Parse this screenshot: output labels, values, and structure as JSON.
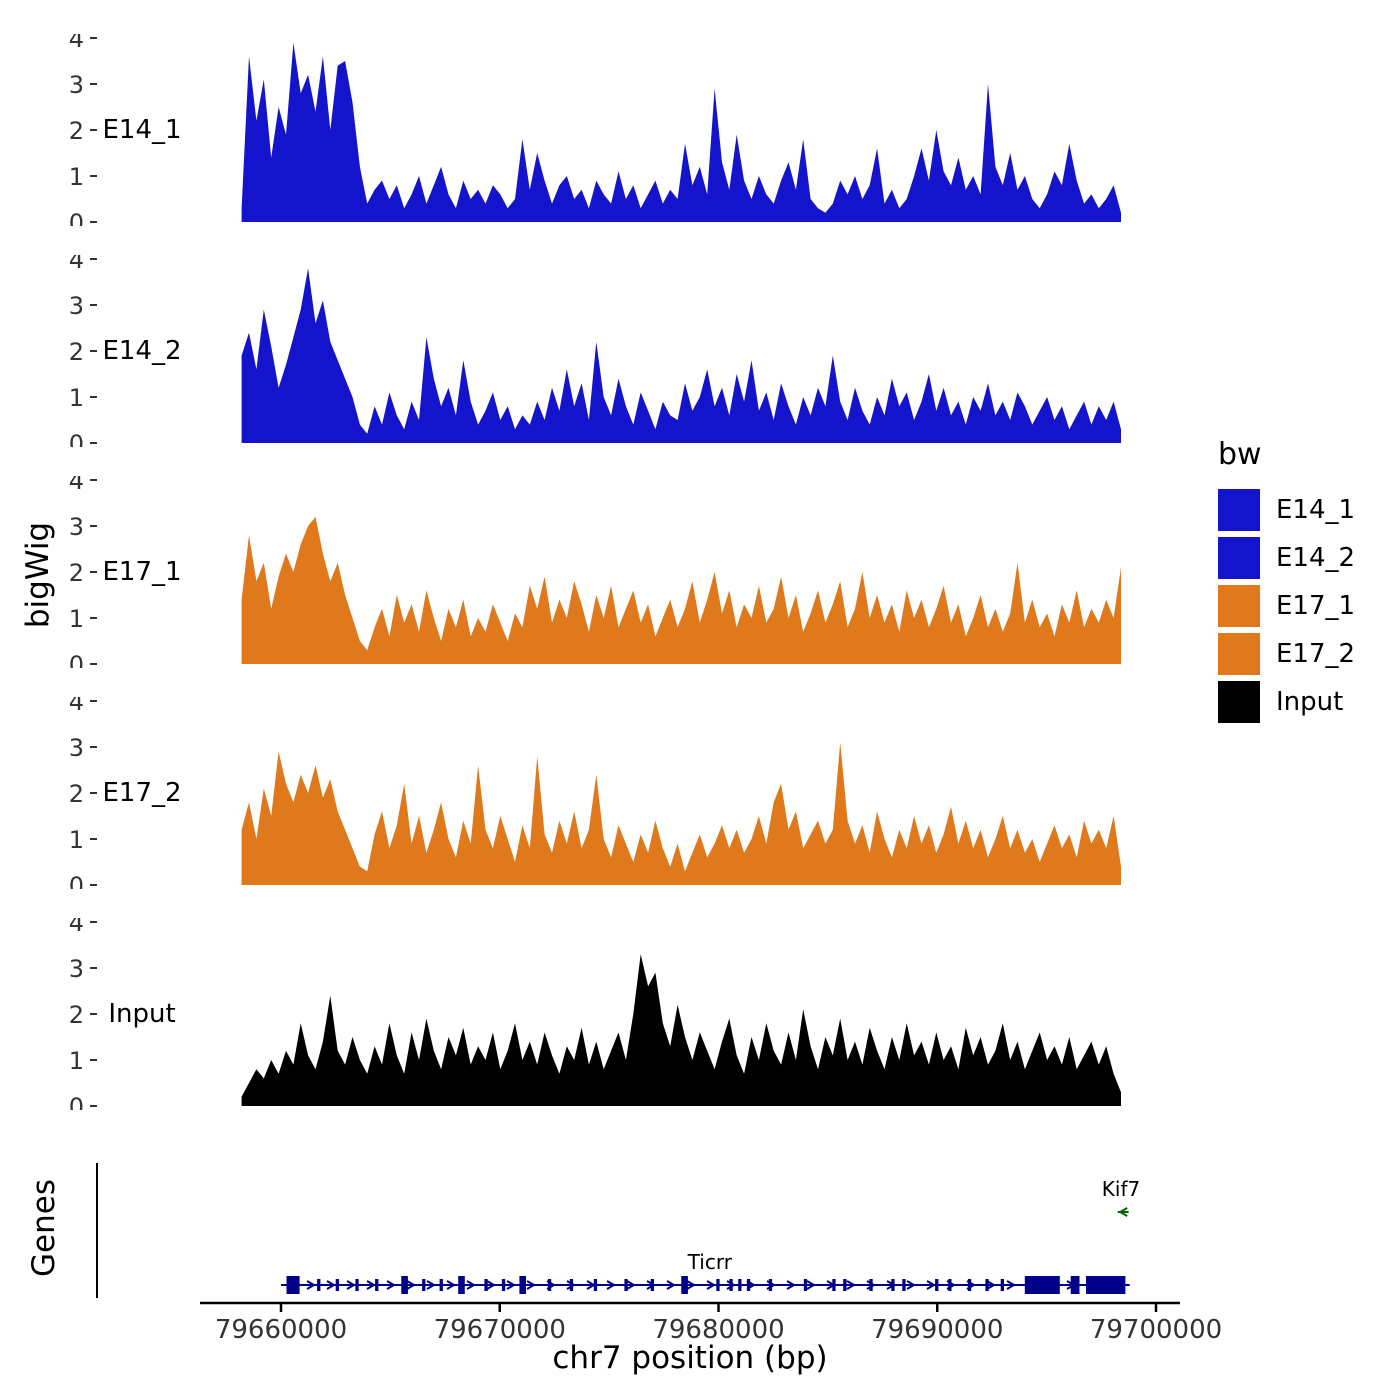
{
  "chart_data": {
    "type": "area",
    "title": "",
    "xlabel": "chr7 position (bp)",
    "ylabel": "bigWig",
    "x_start": 79658200,
    "x_end": 79698400,
    "x_ticks": [
      79660000,
      79670000,
      79680000,
      79690000,
      79700000
    ],
    "y_ticks": [
      0,
      1,
      2,
      3,
      4
    ],
    "ylim": [
      0,
      4
    ],
    "grid": false,
    "legend": {
      "title": "bw",
      "position": "right",
      "entries": [
        {
          "label": "E14_1",
          "color": "#1414CC"
        },
        {
          "label": "E14_2",
          "color": "#1414CC"
        },
        {
          "label": "E17_1",
          "color": "#E0791C"
        },
        {
          "label": "E17_2",
          "color": "#E0791C"
        },
        {
          "label": "Input",
          "color": "#000000"
        }
      ]
    },
    "series": [
      {
        "name": "E14_1",
        "color": "#1414CC",
        "values": [
          0.3,
          3.6,
          2.2,
          3.1,
          1.4,
          2.5,
          1.9,
          3.9,
          2.8,
          3.2,
          2.4,
          3.6,
          2.0,
          3.4,
          3.5,
          2.6,
          1.2,
          0.4,
          0.7,
          0.9,
          0.5,
          0.8,
          0.3,
          0.6,
          1.0,
          0.4,
          0.8,
          1.2,
          0.6,
          0.3,
          0.9,
          0.5,
          0.7,
          0.4,
          0.8,
          0.6,
          0.3,
          0.5,
          1.8,
          0.7,
          1.5,
          0.9,
          0.4,
          0.8,
          1.0,
          0.5,
          0.7,
          0.3,
          0.9,
          0.6,
          0.4,
          1.1,
          0.5,
          0.8,
          0.3,
          0.6,
          0.9,
          0.4,
          0.7,
          0.5,
          1.7,
          0.8,
          1.2,
          0.6,
          2.9,
          1.3,
          0.7,
          1.9,
          0.9,
          0.5,
          1.0,
          0.6,
          0.4,
          0.9,
          1.3,
          0.7,
          1.8,
          0.5,
          0.3,
          0.2,
          0.4,
          0.9,
          0.6,
          1.0,
          0.5,
          0.8,
          1.6,
          0.4,
          0.7,
          0.3,
          0.5,
          1.0,
          1.6,
          0.9,
          2.0,
          1.1,
          0.8,
          1.4,
          0.7,
          1.0,
          0.6,
          3.0,
          1.2,
          0.8,
          1.5,
          0.7,
          1.0,
          0.5,
          0.3,
          0.6,
          1.1,
          0.8,
          1.7,
          0.9,
          0.4,
          0.6,
          0.3,
          0.5,
          0.8,
          0.2
        ]
      },
      {
        "name": "E14_2",
        "color": "#1414CC",
        "values": [
          1.9,
          2.4,
          1.6,
          2.9,
          2.1,
          1.2,
          1.7,
          2.3,
          2.9,
          3.8,
          2.6,
          3.1,
          2.2,
          1.8,
          1.4,
          1.0,
          0.4,
          0.2,
          0.8,
          0.4,
          1.1,
          0.6,
          0.3,
          0.9,
          0.5,
          2.3,
          1.4,
          0.8,
          1.2,
          0.6,
          1.8,
          0.9,
          0.4,
          0.7,
          1.1,
          0.5,
          0.8,
          0.3,
          0.6,
          0.4,
          0.9,
          0.5,
          1.2,
          0.7,
          1.6,
          0.8,
          1.3,
          0.5,
          2.2,
          1.0,
          0.6,
          1.4,
          0.8,
          0.4,
          1.1,
          0.7,
          0.3,
          0.9,
          0.6,
          0.5,
          1.3,
          0.7,
          1.0,
          1.6,
          0.8,
          1.2,
          0.6,
          1.5,
          0.9,
          1.8,
          0.7,
          1.1,
          0.5,
          1.3,
          0.8,
          0.4,
          1.0,
          0.6,
          1.2,
          0.8,
          1.9,
          0.9,
          0.5,
          1.2,
          0.7,
          0.4,
          1.0,
          0.6,
          1.4,
          0.8,
          1.1,
          0.5,
          0.9,
          1.5,
          0.7,
          1.2,
          0.6,
          0.9,
          0.4,
          1.0,
          0.7,
          1.3,
          0.6,
          0.9,
          0.5,
          1.1,
          0.8,
          0.4,
          0.7,
          1.0,
          0.5,
          0.8,
          0.3,
          0.6,
          0.9,
          0.4,
          0.8,
          0.5,
          0.9,
          0.3
        ]
      },
      {
        "name": "E17_1",
        "color": "#E0791C",
        "values": [
          1.4,
          2.8,
          1.8,
          2.2,
          1.2,
          1.9,
          2.4,
          2.0,
          2.6,
          3.0,
          3.2,
          2.4,
          1.8,
          2.2,
          1.5,
          1.0,
          0.5,
          0.3,
          0.8,
          1.2,
          0.6,
          1.5,
          0.9,
          1.3,
          0.7,
          1.6,
          1.0,
          0.5,
          1.2,
          0.8,
          1.4,
          0.6,
          1.0,
          0.7,
          1.3,
          0.9,
          0.5,
          1.1,
          0.8,
          1.7,
          1.2,
          1.9,
          0.9,
          1.4,
          1.0,
          1.8,
          1.3,
          0.7,
          1.5,
          1.0,
          1.7,
          0.8,
          1.2,
          1.6,
          0.9,
          1.3,
          0.6,
          1.0,
          1.4,
          0.8,
          1.2,
          1.8,
          0.9,
          1.4,
          2.0,
          1.1,
          1.6,
          0.8,
          1.3,
          1.0,
          1.7,
          0.9,
          1.2,
          1.9,
          1.0,
          1.5,
          0.7,
          1.1,
          1.6,
          0.9,
          1.3,
          1.8,
          0.8,
          1.2,
          2.0,
          1.0,
          1.5,
          0.9,
          1.3,
          0.7,
          1.6,
          1.0,
          1.4,
          0.8,
          1.2,
          1.7,
          0.9,
          1.3,
          0.6,
          1.0,
          1.5,
          0.8,
          1.2,
          0.7,
          1.1,
          2.2,
          0.9,
          1.4,
          0.8,
          1.1,
          0.6,
          1.3,
          0.9,
          1.6,
          0.8,
          1.2,
          0.9,
          1.4,
          1.0,
          2.1
        ]
      },
      {
        "name": "E17_2",
        "color": "#E0791C",
        "values": [
          1.2,
          1.8,
          1.0,
          2.1,
          1.5,
          2.9,
          2.2,
          1.8,
          2.4,
          2.0,
          2.6,
          1.9,
          2.3,
          1.6,
          1.2,
          0.8,
          0.4,
          0.3,
          1.1,
          1.6,
          0.8,
          1.3,
          2.2,
          0.9,
          1.5,
          0.7,
          1.2,
          1.8,
          1.0,
          0.6,
          1.4,
          0.9,
          2.6,
          1.2,
          0.8,
          1.5,
          1.0,
          0.5,
          1.3,
          0.8,
          2.8,
          1.1,
          0.7,
          1.4,
          0.9,
          1.6,
          0.8,
          1.2,
          2.4,
          1.0,
          0.6,
          1.3,
          0.9,
          0.5,
          1.1,
          0.7,
          1.4,
          0.8,
          0.4,
          0.9,
          0.3,
          0.7,
          1.1,
          0.6,
          0.9,
          1.3,
          0.8,
          1.2,
          0.7,
          1.0,
          1.5,
          0.9,
          1.8,
          2.2,
          1.2,
          1.6,
          0.8,
          1.1,
          1.4,
          0.9,
          1.2,
          3.1,
          1.4,
          0.9,
          1.3,
          0.7,
          1.6,
          1.0,
          0.6,
          1.2,
          0.8,
          1.5,
          0.9,
          1.3,
          0.7,
          1.1,
          1.7,
          0.9,
          1.4,
          0.8,
          1.2,
          0.6,
          1.0,
          1.5,
          0.8,
          1.2,
          0.7,
          1.0,
          0.5,
          0.9,
          1.3,
          0.8,
          1.1,
          0.6,
          1.4,
          0.9,
          1.2,
          0.8,
          1.5,
          0.4
        ]
      },
      {
        "name": "Input",
        "color": "#000000",
        "values": [
          0.2,
          0.5,
          0.8,
          0.6,
          1.0,
          0.7,
          1.2,
          0.9,
          1.8,
          1.1,
          0.8,
          1.4,
          2.4,
          1.2,
          0.9,
          1.5,
          1.0,
          0.7,
          1.3,
          0.9,
          1.8,
          1.1,
          0.7,
          1.6,
          1.0,
          1.9,
          1.2,
          0.8,
          1.5,
          1.1,
          1.7,
          0.9,
          1.3,
          1.0,
          1.6,
          0.8,
          1.2,
          1.8,
          1.0,
          1.4,
          0.9,
          1.6,
          1.1,
          0.7,
          1.3,
          1.0,
          1.7,
          0.9,
          1.4,
          0.8,
          1.2,
          1.6,
          1.0,
          2.0,
          3.3,
          2.6,
          2.9,
          1.8,
          1.3,
          2.2,
          1.5,
          1.0,
          1.6,
          1.2,
          0.8,
          1.4,
          1.9,
          1.1,
          0.7,
          1.5,
          1.0,
          1.8,
          1.2,
          0.9,
          1.6,
          1.0,
          2.1,
          1.3,
          0.8,
          1.5,
          1.1,
          1.9,
          1.0,
          1.4,
          0.9,
          1.7,
          1.2,
          0.8,
          1.5,
          1.0,
          1.8,
          1.1,
          1.4,
          0.9,
          1.6,
          1.0,
          1.3,
          0.8,
          1.7,
          1.1,
          1.5,
          0.9,
          1.2,
          1.8,
          1.0,
          1.4,
          0.8,
          1.2,
          1.6,
          1.0,
          1.3,
          0.9,
          1.5,
          0.8,
          1.1,
          1.4,
          0.9,
          1.3,
          0.7,
          0.3
        ]
      }
    ],
    "genes": {
      "panel_label": "Genes",
      "items": [
        {
          "name": "Kif7",
          "color": "#006400",
          "strand": "-",
          "start": 79698250,
          "end": 79698750,
          "label_bp": 79698400,
          "row": "top",
          "exons": []
        },
        {
          "name": "Ticrr",
          "color": "#00008B",
          "strand": "+",
          "start": 79660000,
          "end": 79698800,
          "label_bp": 79679600,
          "row": "bottom",
          "exons": [
            [
              79660250,
              79660850
            ],
            [
              79661650,
              79661800
            ],
            [
              79662500,
              79662650
            ],
            [
              79663400,
              79663550
            ],
            [
              79664300,
              79664450
            ],
            [
              79665500,
              79665800
            ],
            [
              79666450,
              79666600
            ],
            [
              79667250,
              79667400
            ],
            [
              79668100,
              79668400
            ],
            [
              79669300,
              79669450
            ],
            [
              79670100,
              79670250
            ],
            [
              79670900,
              79671200
            ],
            [
              79672200,
              79672350
            ],
            [
              79673200,
              79673350
            ],
            [
              79674300,
              79674450
            ],
            [
              79675700,
              79675850
            ],
            [
              79676900,
              79677050
            ],
            [
              79678300,
              79678600
            ],
            [
              79679900,
              79680050
            ],
            [
              79680500,
              79680650
            ],
            [
              79680900,
              79681050
            ],
            [
              79681300,
              79681450
            ],
            [
              79682300,
              79682450
            ],
            [
              79683900,
              79684050
            ],
            [
              79685200,
              79685350
            ],
            [
              79685700,
              79685850
            ],
            [
              79686900,
              79687050
            ],
            [
              79687900,
              79688050
            ],
            [
              79688400,
              79688550
            ],
            [
              79689900,
              79690050
            ],
            [
              79690500,
              79690650
            ],
            [
              79691400,
              79691550
            ],
            [
              79692200,
              79692350
            ],
            [
              79692900,
              79693050
            ],
            [
              79694000,
              79695600
            ],
            [
              79696100,
              79696500
            ],
            [
              79696800,
              79698600
            ]
          ]
        }
      ]
    }
  }
}
